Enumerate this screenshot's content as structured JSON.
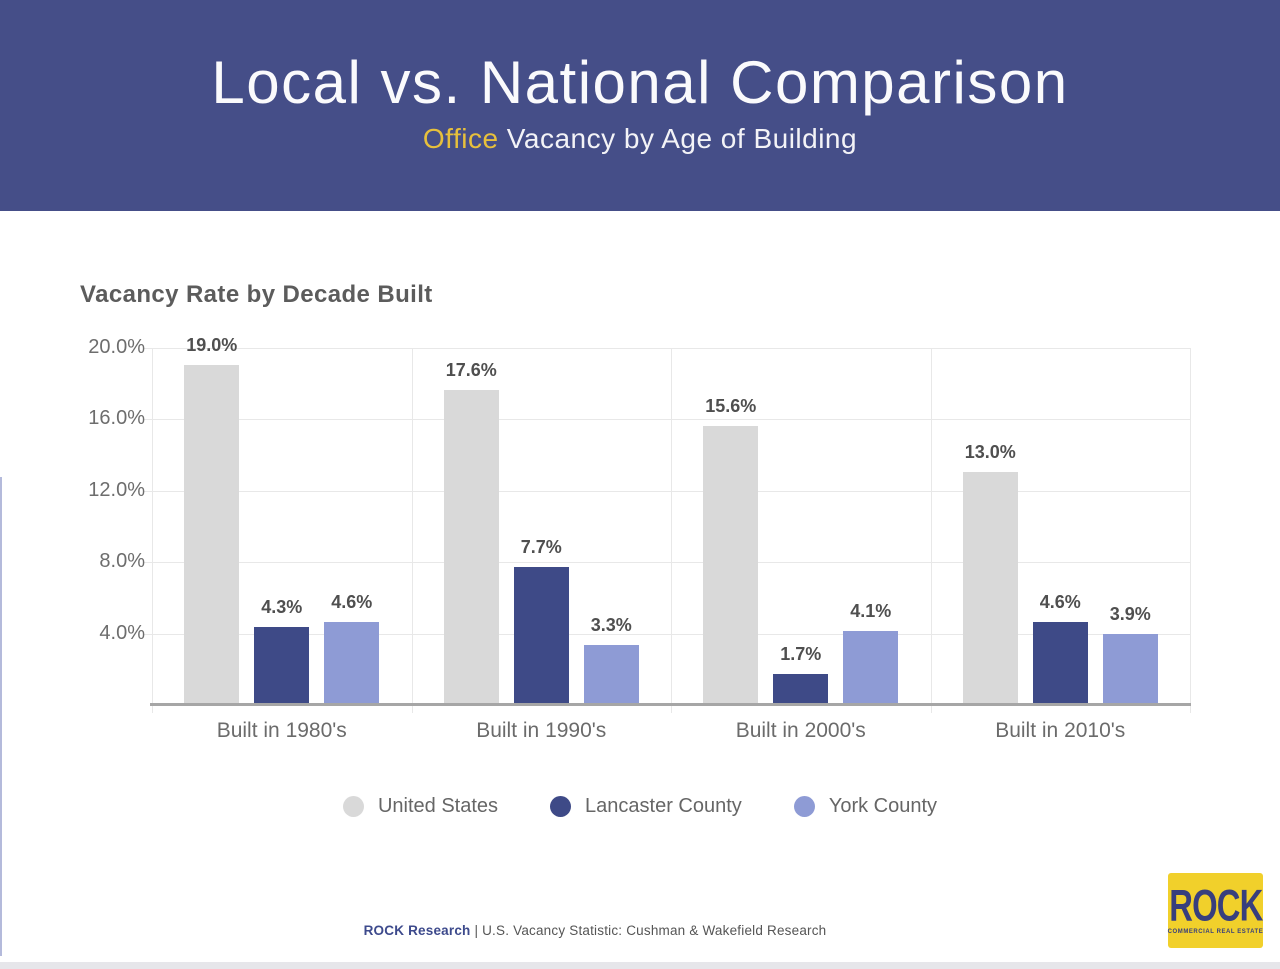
{
  "header": {
    "title": "Local vs. National Comparison",
    "subtitle_highlight": "Office",
    "subtitle_rest": " Vacancy by Age of Building",
    "background_color": "#454e88",
    "highlight_color": "#e7c03c"
  },
  "chart_data": {
    "type": "bar",
    "title": "Vacancy Rate by Decade Built",
    "categories": [
      "Built in 1980's",
      "Built in 1990's",
      "Built in 2000's",
      "Built in 2010's"
    ],
    "series": [
      {
        "name": "United States",
        "color": "#d9d9d9",
        "values": [
          19.0,
          17.6,
          15.6,
          13.0
        ],
        "labels": [
          "19.0%",
          "17.6%",
          "15.6%",
          "13.0%"
        ]
      },
      {
        "name": "Lancaster County",
        "color": "#3e4a87",
        "values": [
          4.3,
          7.7,
          1.7,
          4.6
        ],
        "labels": [
          "4.3%",
          "7.7%",
          "1.7%",
          "4.6%"
        ]
      },
      {
        "name": "York County",
        "color": "#8e9bd5",
        "values": [
          4.6,
          3.3,
          4.1,
          3.9
        ],
        "labels": [
          "4.6%",
          "3.3%",
          "4.1%",
          "3.9%"
        ]
      }
    ],
    "xlabel": "",
    "ylabel": "",
    "ylim": [
      0,
      20
    ],
    "yticks": [
      {
        "value": 4,
        "label": "4.0%"
      },
      {
        "value": 8,
        "label": "8.0%"
      },
      {
        "value": 12,
        "label": "12.0%"
      },
      {
        "value": 16,
        "label": "16.0%"
      },
      {
        "value": 20,
        "label": "20.0%"
      }
    ],
    "grid": true,
    "legend_position": "bottom"
  },
  "footer": {
    "brand": "ROCK Research",
    "text": " | U.S. Vacancy Statistic: Cushman & Wakefield Research"
  },
  "logo": {
    "title": "ROCK",
    "subtitle": "COMMERCIAL REAL ESTATE",
    "background_color": "#f1d02b",
    "text_color": "#383f7d"
  }
}
